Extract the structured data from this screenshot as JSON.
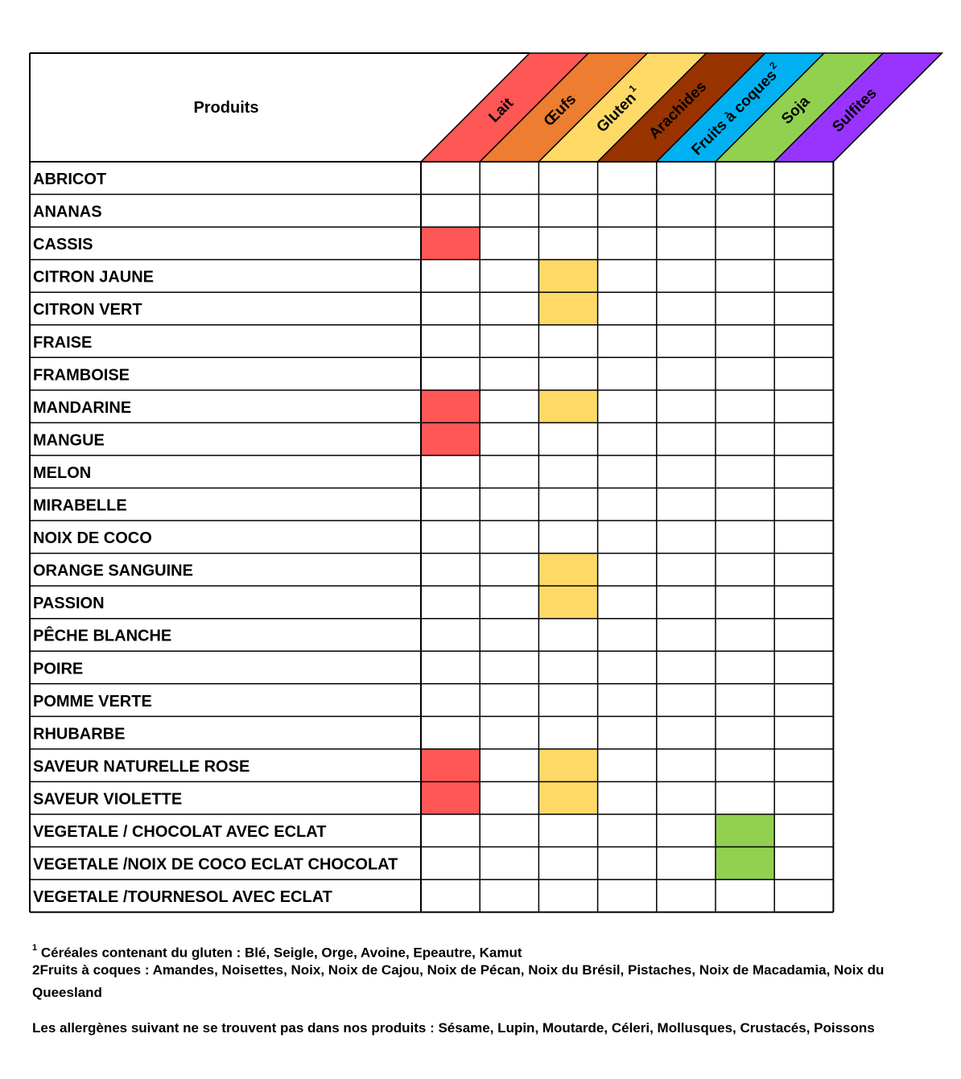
{
  "header": {
    "products_label": "Produits"
  },
  "allergens": [
    {
      "label": "Lait",
      "sup": "",
      "color": "#FF5656",
      "text_color": "#000000"
    },
    {
      "label": "Œufs",
      "sup": "",
      "color": "#ED7D31",
      "text_color": "#000000"
    },
    {
      "label": "Gluten",
      "sup": "1",
      "color": "#FFD966",
      "text_color": "#000000"
    },
    {
      "label": "Arachides",
      "sup": "",
      "color": "#993300",
      "text_color": "#000000"
    },
    {
      "label": "Fruits à coques",
      "sup": "2",
      "color": "#00B0F0",
      "text_color": "#000000"
    },
    {
      "label": "Soja",
      "sup": "",
      "color": "#92D050",
      "text_color": "#000000"
    },
    {
      "label": "Sulfites",
      "sup": "",
      "color": "#9933FF",
      "text_color": "#000000"
    }
  ],
  "products": [
    {
      "name": "ABRICOT",
      "flags": [
        0,
        0,
        0,
        0,
        0,
        0,
        0
      ]
    },
    {
      "name": "ANANAS",
      "flags": [
        0,
        0,
        0,
        0,
        0,
        0,
        0
      ]
    },
    {
      "name": "CASSIS",
      "flags": [
        1,
        0,
        0,
        0,
        0,
        0,
        0
      ]
    },
    {
      "name": "CITRON JAUNE",
      "flags": [
        0,
        0,
        1,
        0,
        0,
        0,
        0
      ]
    },
    {
      "name": "CITRON VERT",
      "flags": [
        0,
        0,
        1,
        0,
        0,
        0,
        0
      ]
    },
    {
      "name": "FRAISE",
      "flags": [
        0,
        0,
        0,
        0,
        0,
        0,
        0
      ]
    },
    {
      "name": "FRAMBOISE",
      "flags": [
        0,
        0,
        0,
        0,
        0,
        0,
        0
      ]
    },
    {
      "name": "MANDARINE",
      "flags": [
        1,
        0,
        1,
        0,
        0,
        0,
        0
      ]
    },
    {
      "name": "MANGUE",
      "flags": [
        1,
        0,
        0,
        0,
        0,
        0,
        0
      ]
    },
    {
      "name": "MELON",
      "flags": [
        0,
        0,
        0,
        0,
        0,
        0,
        0
      ]
    },
    {
      "name": "MIRABELLE",
      "flags": [
        0,
        0,
        0,
        0,
        0,
        0,
        0
      ]
    },
    {
      "name": "NOIX DE COCO",
      "flags": [
        0,
        0,
        0,
        0,
        0,
        0,
        0
      ]
    },
    {
      "name": "ORANGE SANGUINE",
      "flags": [
        0,
        0,
        1,
        0,
        0,
        0,
        0
      ]
    },
    {
      "name": "PASSION",
      "flags": [
        0,
        0,
        1,
        0,
        0,
        0,
        0
      ]
    },
    {
      "name": "PÊCHE BLANCHE",
      "flags": [
        0,
        0,
        0,
        0,
        0,
        0,
        0
      ]
    },
    {
      "name": "POIRE",
      "flags": [
        0,
        0,
        0,
        0,
        0,
        0,
        0
      ]
    },
    {
      "name": "POMME VERTE",
      "flags": [
        0,
        0,
        0,
        0,
        0,
        0,
        0
      ]
    },
    {
      "name": "RHUBARBE",
      "flags": [
        0,
        0,
        0,
        0,
        0,
        0,
        0
      ]
    },
    {
      "name": "SAVEUR NATURELLE ROSE",
      "flags": [
        1,
        0,
        1,
        0,
        0,
        0,
        0
      ]
    },
    {
      "name": "SAVEUR VIOLETTE",
      "flags": [
        1,
        0,
        1,
        0,
        0,
        0,
        0
      ]
    },
    {
      "name": "VEGETALE / CHOCOLAT AVEC ECLAT",
      "flags": [
        0,
        0,
        0,
        0,
        0,
        1,
        0
      ]
    },
    {
      "name": "VEGETALE /NOIX DE COCO ECLAT CHOCOLAT",
      "flags": [
        0,
        0,
        0,
        0,
        0,
        1,
        0
      ]
    },
    {
      "name": "VEGETALE /TOURNESOL AVEC ECLAT",
      "flags": [
        0,
        0,
        0,
        0,
        0,
        0,
        0
      ]
    }
  ],
  "footnotes": {
    "gluten_marker": "1",
    "gluten": "Céréales contenant du gluten : Blé, Seigle, Orge, Avoine, Epeautre, Kamut",
    "nuts": "2Fruits à coques : Amandes, Noisettes, Noix, Noix de Cajou, Noix de Pécan, Noix du Brésil, Pistaches, Noix de Macadamia, Noix du",
    "nuts_cont": "Queesland",
    "absent": "Les allergènes suivant ne se trouvent pas dans nos produits : Sésame, Lupin,  Moutarde, Céleri, Mollusques, Crustacés, Poissons"
  }
}
